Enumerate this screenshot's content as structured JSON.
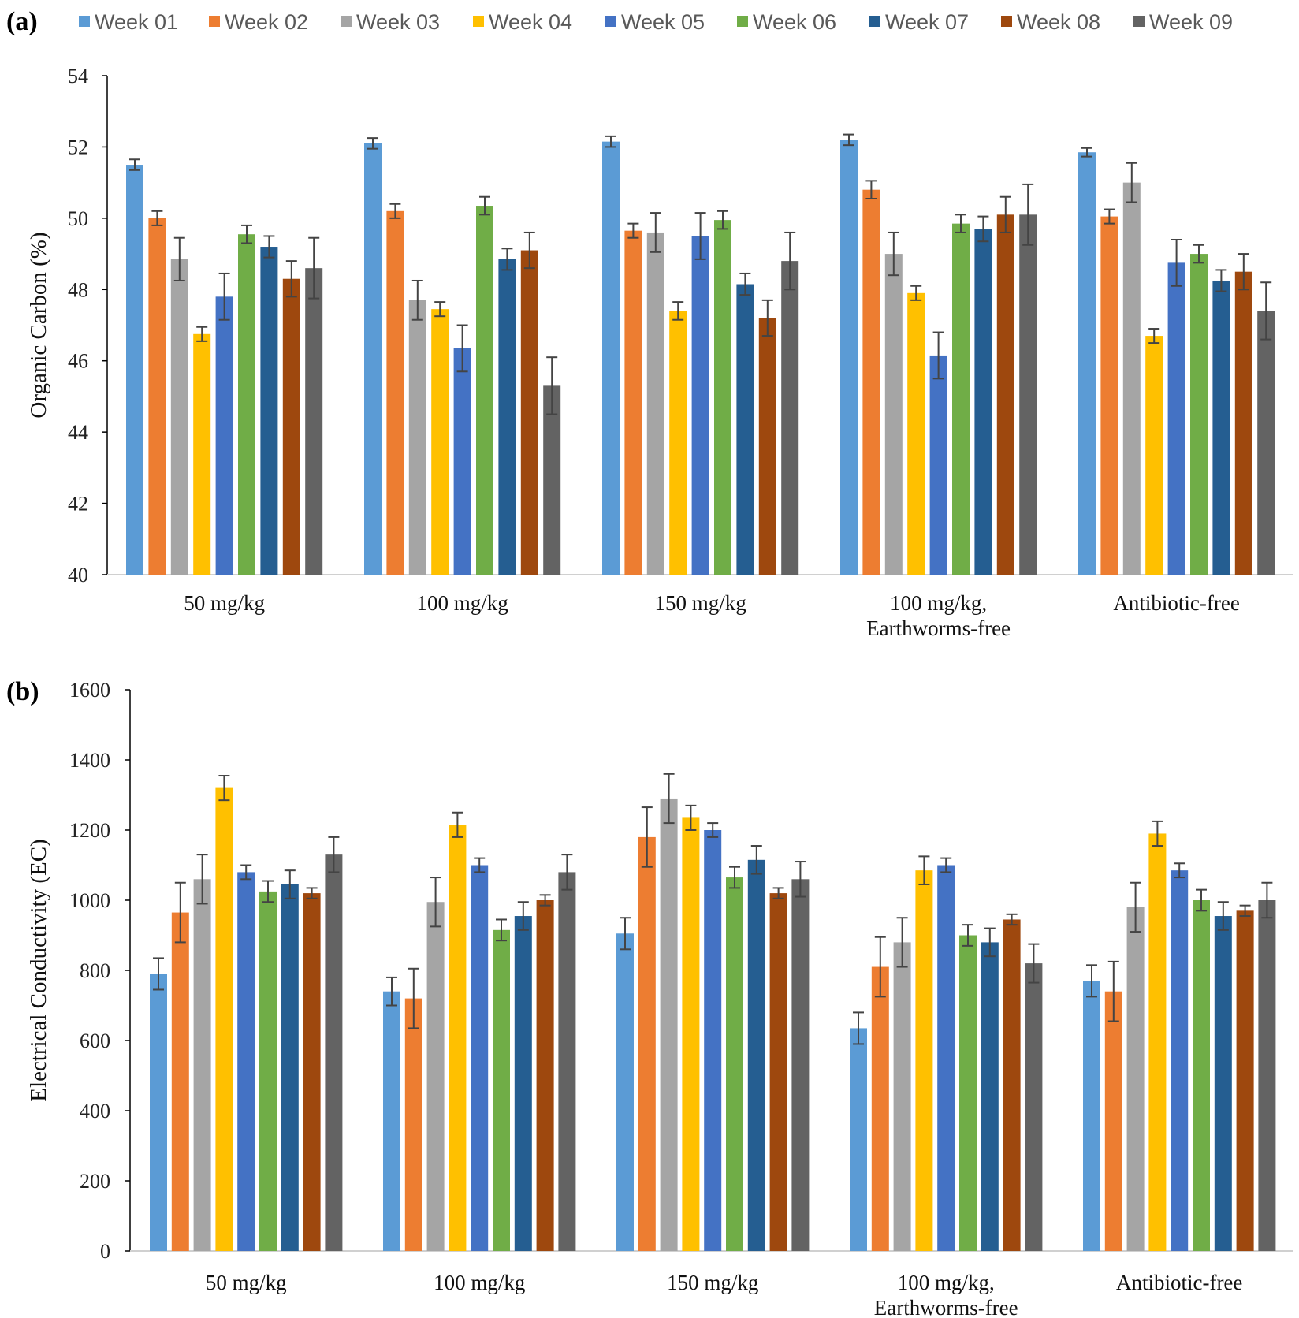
{
  "legend": {
    "entries": [
      "Week 01",
      "Week 02",
      "Week 03",
      "Week 04",
      "Week 05",
      "Week 06",
      "Week 07",
      "Week 08",
      "Week 09"
    ]
  },
  "colors": [
    "#5B9BD5",
    "#ED7D31",
    "#A5A5A5",
    "#FFC000",
    "#4472C4",
    "#70AD47",
    "#255E91",
    "#9E480E",
    "#636363"
  ],
  "chart_data": [
    {
      "panel": "(a)",
      "type": "bar",
      "title": "",
      "ylabel": "Organic Carbon (%)",
      "xlabel": "",
      "ylim": [
        40,
        54
      ],
      "yticks": [
        40,
        42,
        44,
        46,
        48,
        50,
        52,
        54
      ],
      "categories": [
        [
          "50 mg/kg"
        ],
        [
          "100 mg/kg"
        ],
        [
          "150 mg/kg"
        ],
        [
          "100 mg/kg,",
          "Earthworms-free"
        ],
        [
          "Antibiotic-free"
        ]
      ],
      "series": [
        {
          "name": "Week 01",
          "values": [
            51.5,
            52.1,
            52.15,
            52.2,
            51.85
          ],
          "errors": [
            0.15,
            0.15,
            0.15,
            0.15,
            0.12
          ]
        },
        {
          "name": "Week 02",
          "values": [
            50.0,
            50.2,
            49.65,
            50.8,
            50.05
          ],
          "errors": [
            0.2,
            0.2,
            0.2,
            0.25,
            0.2
          ]
        },
        {
          "name": "Week 03",
          "values": [
            48.85,
            47.7,
            49.6,
            49.0,
            51.0
          ],
          "errors": [
            0.6,
            0.55,
            0.55,
            0.6,
            0.55
          ]
        },
        {
          "name": "Week 04",
          "values": [
            46.75,
            47.45,
            47.4,
            47.9,
            46.7
          ],
          "errors": [
            0.2,
            0.2,
            0.25,
            0.2,
            0.2
          ]
        },
        {
          "name": "Week 05",
          "values": [
            47.8,
            46.35,
            49.5,
            46.15,
            48.75
          ],
          "errors": [
            0.65,
            0.65,
            0.65,
            0.65,
            0.65
          ]
        },
        {
          "name": "Week 06",
          "values": [
            49.55,
            50.35,
            49.95,
            49.85,
            49.0
          ],
          "errors": [
            0.25,
            0.25,
            0.25,
            0.25,
            0.25
          ]
        },
        {
          "name": "Week 07",
          "values": [
            49.2,
            48.85,
            48.15,
            49.7,
            48.25
          ],
          "errors": [
            0.3,
            0.3,
            0.3,
            0.35,
            0.3
          ]
        },
        {
          "name": "Week 08",
          "values": [
            48.3,
            49.1,
            47.2,
            50.1,
            48.5
          ],
          "errors": [
            0.5,
            0.5,
            0.5,
            0.5,
            0.5
          ]
        },
        {
          "name": "Week 09",
          "values": [
            48.6,
            45.3,
            48.8,
            50.1,
            47.4
          ],
          "errors": [
            0.85,
            0.8,
            0.8,
            0.85,
            0.8
          ]
        }
      ]
    },
    {
      "panel": "(b)",
      "type": "bar",
      "title": "",
      "ylabel": "Electrical Conductivity (EC)",
      "xlabel": "",
      "ylim": [
        0,
        1600
      ],
      "yticks": [
        0,
        200,
        400,
        600,
        800,
        1000,
        1200,
        1400,
        1600
      ],
      "categories": [
        [
          "50 mg/kg"
        ],
        [
          "100 mg/kg"
        ],
        [
          "150 mg/kg"
        ],
        [
          "100 mg/kg,",
          "Earthworms-free"
        ],
        [
          "Antibiotic-free"
        ]
      ],
      "series": [
        {
          "name": "Week 01",
          "values": [
            790,
            740,
            905,
            635,
            770
          ],
          "errors": [
            45,
            40,
            45,
            45,
            45
          ]
        },
        {
          "name": "Week 02",
          "values": [
            965,
            720,
            1180,
            810,
            740
          ],
          "errors": [
            85,
            85,
            85,
            85,
            85
          ]
        },
        {
          "name": "Week 03",
          "values": [
            1060,
            995,
            1290,
            880,
            980
          ],
          "errors": [
            70,
            70,
            70,
            70,
            70
          ]
        },
        {
          "name": "Week 04",
          "values": [
            1320,
            1215,
            1235,
            1085,
            1190
          ],
          "errors": [
            35,
            35,
            35,
            40,
            35
          ]
        },
        {
          "name": "Week 05",
          "values": [
            1080,
            1100,
            1200,
            1100,
            1085
          ],
          "errors": [
            20,
            20,
            20,
            20,
            20
          ]
        },
        {
          "name": "Week 06",
          "values": [
            1025,
            915,
            1065,
            900,
            1000
          ],
          "errors": [
            30,
            30,
            30,
            30,
            30
          ]
        },
        {
          "name": "Week 07",
          "values": [
            1045,
            955,
            1115,
            880,
            955
          ],
          "errors": [
            40,
            40,
            40,
            40,
            40
          ]
        },
        {
          "name": "Week 08",
          "values": [
            1020,
            1000,
            1020,
            945,
            970
          ],
          "errors": [
            15,
            15,
            15,
            15,
            15
          ]
        },
        {
          "name": "Week 09",
          "values": [
            1130,
            1080,
            1060,
            820,
            1000
          ],
          "errors": [
            50,
            50,
            50,
            55,
            50
          ]
        }
      ]
    }
  ]
}
